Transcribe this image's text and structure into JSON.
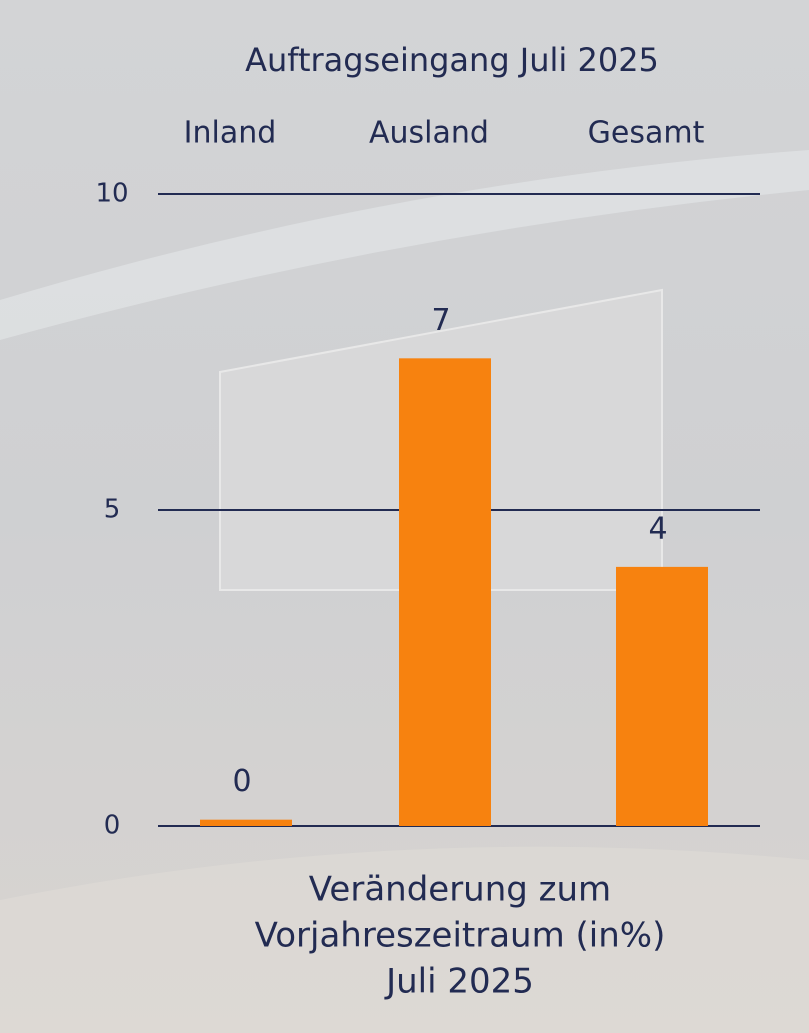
{
  "chart_data": {
    "type": "bar",
    "title": "Auftragseingang Juli 2025",
    "categories": [
      "Inland",
      "Ausland",
      "Gesamt"
    ],
    "values": [
      0.1,
      7.4,
      4.1
    ],
    "value_labels": [
      "0",
      "7",
      "4"
    ],
    "color": "#f7820f",
    "ylim": [
      0,
      10
    ],
    "yticks": [
      0,
      5,
      10
    ],
    "grid": true,
    "x_label": [
      "Veränderung zum",
      "Vorjahreszeitraum (in%)",
      "Juli 2025"
    ]
  }
}
